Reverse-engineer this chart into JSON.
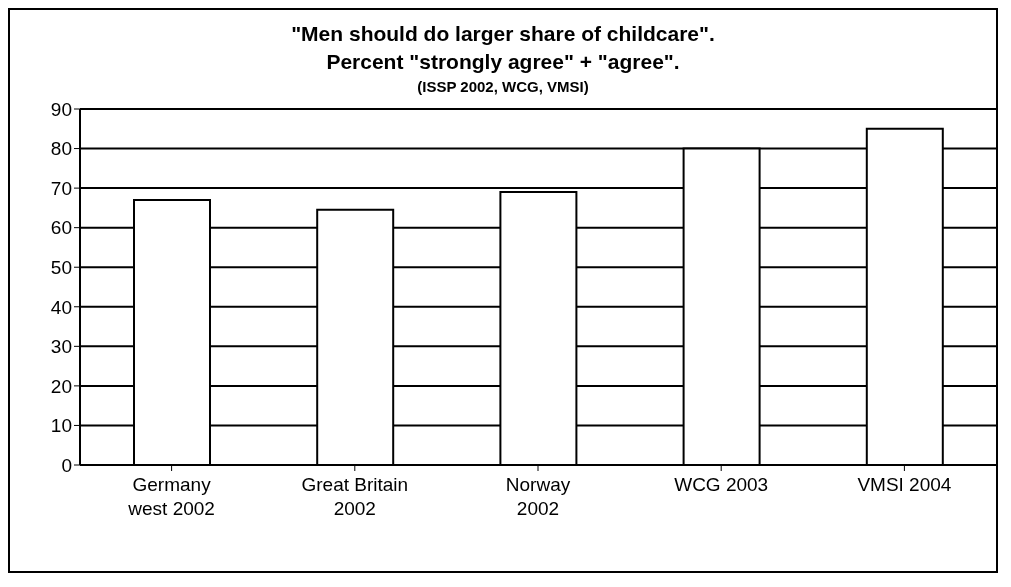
{
  "chart_data": {
    "type": "bar",
    "title": "\"Men should do larger share of childcare\".",
    "subtitle": "Percent \"strongly agree\" + \"agree\".",
    "annotations": [
      "(ISSP 2002, WCG, VMSI)"
    ],
    "categories": [
      "Germany\nwest 2002",
      "Great Britain\n2002",
      "Norway\n2002",
      "WCG 2003",
      "VMSI 2004"
    ],
    "values": [
      67,
      64.5,
      69,
      80,
      85
    ],
    "color": "#ffffff",
    "ylim": [
      0,
      90
    ],
    "yticks": [
      0,
      10,
      20,
      30,
      40,
      50,
      60,
      70,
      80,
      90
    ],
    "grid": "y"
  }
}
